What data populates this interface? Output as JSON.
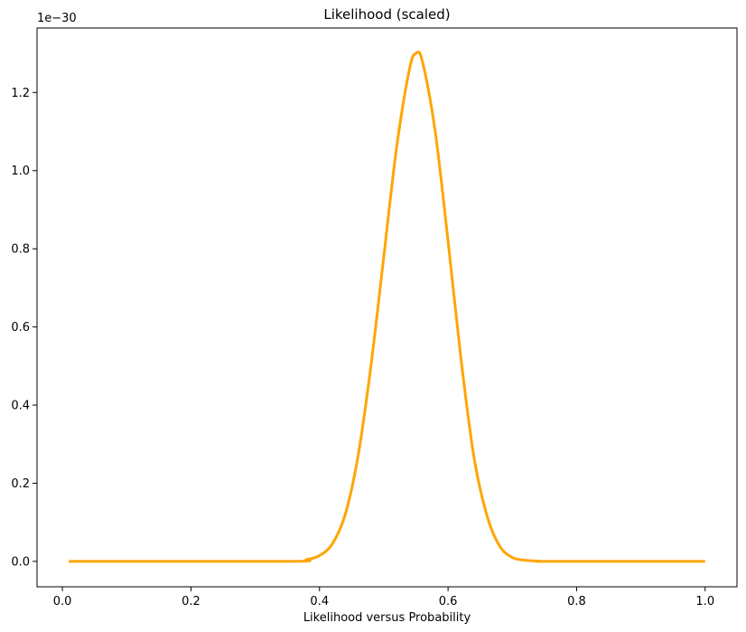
{
  "chart_data": {
    "type": "line",
    "title": "Likelihood (scaled)",
    "xlabel": "Likelihood versus Probability",
    "ylabel": "",
    "y_offset_label": "1e−30",
    "xlim": [
      -0.0395,
      1.0495
    ],
    "ylim": [
      -0.065,
      1.365
    ],
    "x_ticks": [
      0.0,
      0.2,
      0.4,
      0.6,
      0.8,
      1.0
    ],
    "x_tick_labels": [
      "0.0",
      "0.2",
      "0.4",
      "0.6",
      "0.8",
      "1.0"
    ],
    "y_ticks": [
      0.0,
      0.2,
      0.4,
      0.6,
      0.8,
      1.0,
      1.2
    ],
    "y_tick_labels": [
      "0.0",
      "0.2",
      "0.4",
      "0.6",
      "0.8",
      "1.0",
      "1.2"
    ],
    "grid": false,
    "legend": "none",
    "series": [
      {
        "color": "#FFA500",
        "x": [
          0.01,
          0.35,
          0.38,
          0.4,
          0.42,
          0.44,
          0.46,
          0.48,
          0.5,
          0.52,
          0.54,
          0.55,
          0.56,
          0.58,
          0.6,
          0.62,
          0.64,
          0.66,
          0.68,
          0.7,
          0.72,
          0.74,
          0.76,
          1.0
        ],
        "y": [
          0.0,
          0.0,
          0.005,
          0.015,
          0.045,
          0.12,
          0.27,
          0.5,
          0.78,
          1.06,
          1.26,
          1.3,
          1.28,
          1.1,
          0.82,
          0.52,
          0.27,
          0.12,
          0.04,
          0.01,
          0.003,
          0.001,
          0.0,
          0.0
        ]
      }
    ]
  }
}
